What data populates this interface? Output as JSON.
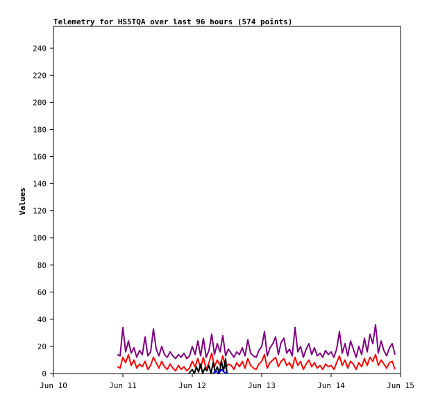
{
  "chart_data": {
    "type": "line",
    "title": "Telemetry for HS5TQA over last 96 hours (574 points)",
    "xlabel": "",
    "ylabel": "Values",
    "x_tick_labels": [
      "Jun 10",
      "Jun 11",
      "Jun 12",
      "Jun 13",
      "Jun 14",
      "Jun 15"
    ],
    "x_range_days": [
      10,
      15
    ],
    "ylim": [
      0,
      256
    ],
    "y_ticks": [
      0,
      20,
      40,
      60,
      80,
      100,
      120,
      140,
      160,
      180,
      200,
      220,
      240
    ],
    "grid": false,
    "legend": "none",
    "series": [
      {
        "color": "#800080",
        "x": [
          10.92,
          10.96,
          11.0,
          11.04,
          11.08,
          11.12,
          11.16,
          11.2,
          11.24,
          11.28,
          11.32,
          11.36,
          11.4,
          11.44,
          11.48,
          11.52,
          11.56,
          11.6,
          11.64,
          11.68,
          11.72,
          11.76,
          11.8,
          11.84,
          11.88,
          11.92,
          11.96,
          12.0,
          12.04,
          12.08,
          12.12,
          12.16,
          12.2,
          12.24,
          12.28,
          12.32,
          12.36,
          12.4,
          12.44,
          12.48,
          12.52,
          12.56,
          12.6,
          12.64,
          12.68,
          12.72,
          12.76,
          12.8,
          12.84,
          12.88,
          12.92,
          12.96,
          13.0,
          13.04,
          13.08,
          13.12,
          13.16,
          13.2,
          13.24,
          13.28,
          13.32,
          13.36,
          13.4,
          13.44,
          13.48,
          13.52,
          13.56,
          13.6,
          13.64,
          13.68,
          13.72,
          13.76,
          13.8,
          13.84,
          13.88,
          13.92,
          13.96,
          14.0,
          14.04,
          14.08,
          14.12,
          14.16,
          14.2,
          14.24,
          14.28,
          14.32,
          14.36,
          14.4,
          14.44,
          14.48,
          14.52,
          14.56,
          14.6,
          14.64,
          14.68,
          14.72,
          14.76,
          14.8,
          14.84,
          14.88,
          14.92
        ],
        "y": [
          14,
          13,
          34,
          16,
          24,
          15,
          19,
          12,
          17,
          14,
          27,
          13,
          16,
          33,
          18,
          13,
          20,
          14,
          12,
          16,
          13,
          11,
          14,
          12,
          15,
          11,
          13,
          20,
          14,
          24,
          13,
          26,
          12,
          17,
          29,
          14,
          22,
          16,
          28,
          13,
          18,
          15,
          12,
          16,
          14,
          19,
          13,
          25,
          15,
          13,
          12,
          17,
          20,
          31,
          13,
          19,
          22,
          27,
          14,
          23,
          26,
          15,
          18,
          13,
          34,
          16,
          20,
          12,
          18,
          22,
          14,
          19,
          13,
          15,
          12,
          17,
          14,
          16,
          12,
          18,
          31,
          15,
          22,
          13,
          24,
          18,
          12,
          20,
          14,
          26,
          16,
          29,
          22,
          36,
          15,
          24,
          17,
          13,
          19,
          22,
          14
        ]
      },
      {
        "color": "#ff0000",
        "x": [
          10.92,
          10.96,
          11.0,
          11.04,
          11.08,
          11.12,
          11.16,
          11.2,
          11.24,
          11.28,
          11.32,
          11.36,
          11.4,
          11.44,
          11.48,
          11.52,
          11.56,
          11.6,
          11.64,
          11.68,
          11.72,
          11.76,
          11.8,
          11.84,
          11.88,
          11.92,
          11.96,
          12.0,
          12.04,
          12.08,
          12.12,
          12.16,
          12.2,
          12.24,
          12.28,
          12.32,
          12.36,
          12.4,
          12.44,
          12.48,
          12.52,
          12.56,
          12.6,
          12.64,
          12.68,
          12.72,
          12.76,
          12.8,
          12.84,
          12.88,
          12.92,
          12.96,
          13.0,
          13.04,
          13.08,
          13.12,
          13.16,
          13.2,
          13.24,
          13.28,
          13.32,
          13.36,
          13.4,
          13.44,
          13.48,
          13.52,
          13.56,
          13.6,
          13.64,
          13.68,
          13.72,
          13.76,
          13.8,
          13.84,
          13.88,
          13.92,
          13.96,
          14.0,
          14.04,
          14.08,
          14.12,
          14.16,
          14.2,
          14.24,
          14.28,
          14.32,
          14.36,
          14.4,
          14.44,
          14.48,
          14.52,
          14.56,
          14.6,
          14.64,
          14.68,
          14.72,
          14.76,
          14.8,
          14.84,
          14.88,
          14.92
        ],
        "y": [
          5,
          4,
          12,
          8,
          14,
          6,
          10,
          4,
          7,
          5,
          9,
          3,
          6,
          12,
          8,
          4,
          9,
          5,
          3,
          7,
          4,
          2,
          6,
          3,
          5,
          2,
          4,
          9,
          5,
          11,
          4,
          12,
          3,
          8,
          15,
          5,
          10,
          6,
          13,
          4,
          7,
          6,
          3,
          8,
          5,
          9,
          4,
          11,
          6,
          4,
          3,
          7,
          9,
          14,
          4,
          8,
          10,
          12,
          5,
          9,
          11,
          6,
          8,
          4,
          12,
          6,
          9,
          3,
          7,
          10,
          5,
          8,
          4,
          6,
          3,
          7,
          5,
          6,
          3,
          8,
          13,
          6,
          10,
          4,
          9,
          7,
          3,
          8,
          5,
          11,
          6,
          12,
          9,
          14,
          6,
          10,
          7,
          4,
          8,
          9,
          3
        ]
      },
      {
        "color": "#000000",
        "x": [
          11.95,
          12.0,
          12.03,
          12.06,
          12.09,
          12.12,
          12.15,
          12.18,
          12.21,
          12.24,
          12.27,
          12.3,
          12.33,
          12.36,
          12.39,
          12.42,
          12.45,
          12.48,
          12.5
        ],
        "y": [
          0,
          3,
          0,
          5,
          1,
          7,
          0,
          4,
          2,
          6,
          0,
          8,
          1,
          5,
          0,
          9,
          2,
          11,
          0
        ]
      },
      {
        "color": "#0000ff",
        "x": [
          12.3,
          12.34,
          12.38,
          12.42,
          12.46,
          12.5
        ],
        "y": [
          0,
          2,
          0,
          3,
          1,
          0
        ]
      }
    ]
  }
}
